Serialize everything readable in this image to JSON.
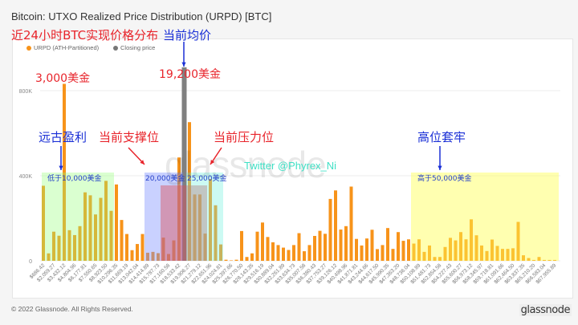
{
  "header": {
    "title": "Bitcoin: UTXO Realized Price Distribution (URPD) [BTC]"
  },
  "legend": [
    {
      "label": "URPD (ATH-Partitioned)",
      "color": "#f7931a"
    },
    {
      "label": "Closing price",
      "color": "#777777"
    }
  ],
  "annotations": {
    "subtitle": "近24小时BTC实现价格分布",
    "current_avg": "当前均价",
    "price_3000": "3,000美金",
    "price_19200": "19,200美金",
    "ancient_profit": "远古盈利",
    "support": "当前支撑位",
    "resistance": "当前压力位",
    "high_trapped": "高位套牢",
    "zone_below_10000": "低于10,000美金",
    "zone_20000": "20,000美金",
    "zone_25000": "25,000美金",
    "zone_above_50000": "高于50,000美金",
    "twitter": "Twitter @Phyrex_Ni"
  },
  "watermark": "glassnode",
  "footer": {
    "copyright": "© 2022 Glassnode. All Rights Reserved.",
    "logo": "glassnode"
  },
  "chart_data": {
    "type": "bar",
    "title": "Bitcoin: UTXO Realized Price Distribution (URPD) [BTC]",
    "xlabel": "",
    "ylabel": "",
    "ylim": [
      0,
      900000
    ],
    "y_ticks": [
      "0",
      "400K",
      "800K"
    ],
    "y_tick_values": [
      0,
      400000,
      800000
    ],
    "grid": true,
    "legend_position": "top-left",
    "x_tick_labels": [
      "$686.42",
      "$2,059.27",
      "$3,432.12",
      "$4,804.96",
      "$6,177.81",
      "$7,550.65",
      "$8,923.50",
      "$10,296.35",
      "$11,669.19",
      "$13,042.04",
      "$14,414.89",
      "$15,787.73",
      "$17,160.58",
      "$18,533.42",
      "$19,906.27",
      "$21,279.12",
      "$22,651.96",
      "$24,024.81",
      "$25,397.66",
      "$26,770.50",
      "$28,143.35",
      "$29,516.19",
      "$30,889.04",
      "$32,261.89",
      "$33,634.73",
      "$35,007.58",
      "$36,380.43",
      "$37,753.27",
      "$39,126.12",
      "$40,498.96",
      "$41,871.81",
      "$43,244.66",
      "$44,617.50",
      "$45,990.35",
      "$47,363.20",
      "$48,736.04",
      "$50,108.89",
      "$51,481.73",
      "$52,854.58",
      "$54,227.43",
      "$55,600.27",
      "$56,973.12",
      "$58,345.97",
      "$59,718.81",
      "$61,091.66",
      "$62,464.50",
      "$63,837.35",
      "$65,210.20",
      "$66,583.04",
      "$67,955.89"
    ],
    "series": [
      {
        "name": "URPD (ATH-Partitioned)",
        "color": "#f7931a",
        "values": [
          353000,
          35000,
          137000,
          118000,
          832000,
          144000,
          121000,
          163000,
          322000,
          308000,
          218000,
          296000,
          376000,
          235000,
          359000,
          192000,
          126000,
          50000,
          79000,
          126000,
          38000,
          42000,
          36000,
          109000,
          32000,
          96000,
          486000,
          null,
          652000,
          312000,
          312000,
          128000,
          385000,
          261000,
          77000,
          5000,
          2000,
          5000,
          140000,
          18000,
          35000,
          137000,
          180000,
          112000,
          87000,
          74000,
          62000,
          51000,
          74000,
          130000,
          45000,
          74000,
          117000,
          141000,
          127000,
          291000,
          331000,
          147000,
          163000,
          349000,
          103000,
          72000,
          105000,
          146000,
          55000,
          74000,
          154000,
          56000,
          135000,
          94000,
          101000,
          81000,
          101000,
          42000,
          72000,
          18000,
          18000,
          65000,
          108000,
          96000,
          135000,
          101000,
          195000,
          120000,
          72000,
          46000,
          100000,
          70000,
          56000,
          56000,
          59000,
          183000,
          26000,
          13000,
          4000,
          18000,
          4000,
          4000,
          4000
        ]
      }
    ],
    "closing_price": {
      "name": "Closing price",
      "color": "#808080",
      "bar_index": 27,
      "value": 910000
    }
  }
}
